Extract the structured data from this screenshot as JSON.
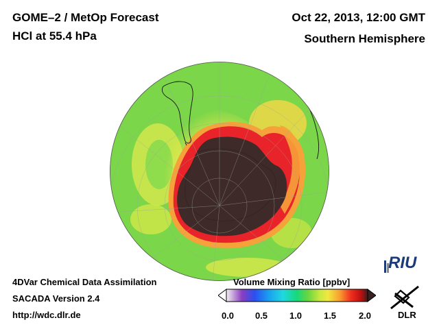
{
  "header": {
    "title_line1": "GOME–2 / MetOp Forecast",
    "title_line2": "HCl at 55.4 hPa",
    "date": "Oct 22, 2013, 12:00 GMT",
    "region": "Southern Hemisphere"
  },
  "footer": {
    "line1": "4DVar Chemical Data Assimilation",
    "line2": "SACADA Version 2.4",
    "url": "http://wdc.dlr.de"
  },
  "colorbar": {
    "title": "Volume Mixing Ratio [ppbv]",
    "ticks": [
      "0.0",
      "0.5",
      "1.0",
      "1.5",
      "2.0"
    ],
    "range": [
      0.0,
      2.0
    ],
    "colors": [
      "#f4f0f4",
      "#8a3ec0",
      "#2a4ff0",
      "#1aa0f0",
      "#20d8e0",
      "#18d878",
      "#6cd640",
      "#c8e840",
      "#f0e840",
      "#f8a030",
      "#f03020",
      "#c01010",
      "#3a2020"
    ]
  },
  "map": {
    "projection": "orthographic",
    "hemisphere": "Southern Hemisphere",
    "background_color": "#7bd64a",
    "ozone_hole_color": "#3e2a28",
    "rim_color": "#e8242a",
    "orange_color": "#f6a23a",
    "yellow_color": "#e7e84e"
  },
  "logos": {
    "riu": "RIU",
    "dlr": "DLR"
  }
}
